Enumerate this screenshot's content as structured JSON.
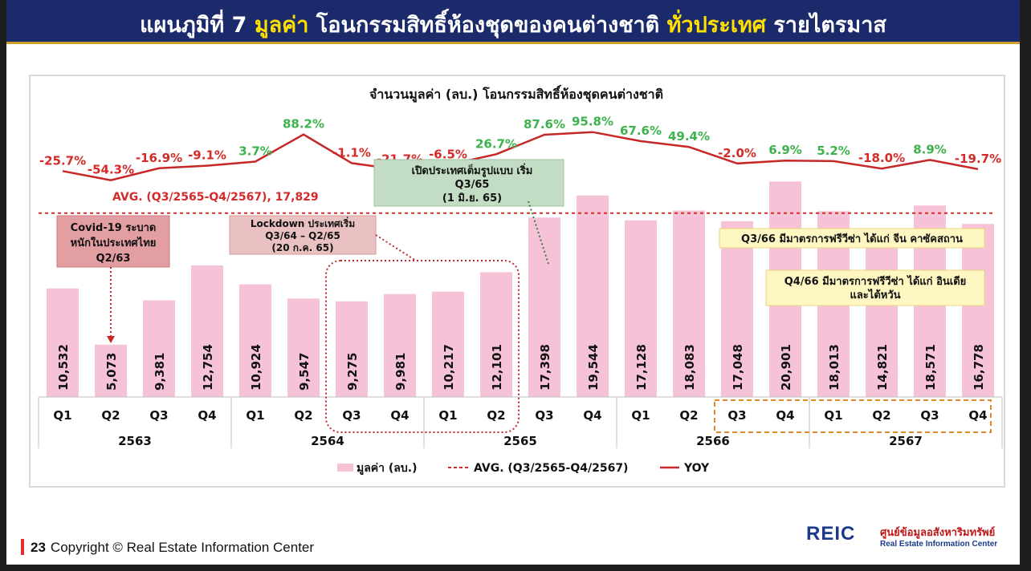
{
  "header": {
    "title_prefix": "แผนภูมิที่ 7 ",
    "title_highlight1": "มูลค่า",
    "title_middle": " โอนกรรมสิทธิ์ห้องชุดของคนต่างชาติ ",
    "title_highlight2": "ทั่วประเทศ",
    "title_suffix": " รายไตรมาส"
  },
  "chart_data": {
    "type": "bar",
    "title": "จำนวนมูลค่า (ลบ.) โอนกรรมสิทธิ์ห้องชุดคนต่างชาติ",
    "quarters": [
      "Q1",
      "Q2",
      "Q3",
      "Q4",
      "Q1",
      "Q2",
      "Q3",
      "Q4",
      "Q1",
      "Q2",
      "Q3",
      "Q4",
      "Q1",
      "Q2",
      "Q3",
      "Q4",
      "Q1",
      "Q2",
      "Q3",
      "Q4"
    ],
    "years": [
      {
        "label": "2563",
        "count": 4
      },
      {
        "label": "2564",
        "count": 4
      },
      {
        "label": "2565",
        "count": 4
      },
      {
        "label": "2566",
        "count": 4
      },
      {
        "label": "2567",
        "count": 4
      }
    ],
    "values": [
      10532,
      5073,
      9381,
      12754,
      10924,
      9547,
      9275,
      9981,
      10217,
      12101,
      17398,
      19544,
      17128,
      18083,
      17048,
      20901,
      18013,
      14821,
      18571,
      16778
    ],
    "value_labels": [
      "10,532",
      "5,073",
      "9,381",
      "12,754",
      "10,924",
      "9,547",
      "9,275",
      "9,981",
      "10,217",
      "12,101",
      "17,398",
      "19,544",
      "17,128",
      "18,083",
      "17,048",
      "20,901",
      "18,013",
      "14,821",
      "18,571",
      "16,778"
    ],
    "yoy": [
      -25.7,
      -54.3,
      -16.9,
      -9.1,
      3.7,
      88.2,
      -1.1,
      -21.7,
      -6.5,
      26.7,
      87.6,
      95.8,
      67.6,
      49.4,
      -2.0,
      6.9,
      5.2,
      -18.0,
      8.9,
      -19.7
    ],
    "yoy_labels": [
      "-25.7%",
      "-54.3%",
      "-16.9%",
      "-9.1%",
      "3.7%",
      "88.2%",
      "-1.1%",
      "-21.7%",
      "-6.5%",
      "26.7%",
      "87.6%",
      "95.8%",
      "67.6%",
      "49.4%",
      "-2.0%",
      "6.9%",
      "5.2%",
      "-18.0%",
      "8.9%",
      "-19.7%"
    ],
    "avg": 17829,
    "avg_label": "AVG. (Q3/2565-Q4/2567),  17,829",
    "ylim": [
      0,
      28000
    ],
    "legend": {
      "position": "bottom",
      "bar": "มูลค่า (ลบ.)",
      "avg": "AVG. (Q3/2565-Q4/2567)",
      "yoy": "YOY"
    },
    "annotations": {
      "covid": [
        "Covid-19 ระบาด",
        "หนักในประเทศไทย",
        "Q2/63"
      ],
      "lockdown": [
        "Lockdown ประเทศเริ่ม",
        "Q3/64 – Q2/65",
        "(20 ก.ค. 65)"
      ],
      "reopen": [
        "เปิดประเทศเต็มรูปแบบ เริ่ม",
        "Q3/65",
        "(1 มิ.ย. 65)"
      ],
      "visa1": "Q3/66 มีมาตรการฟรีวีซ่า ได้แก่ จีน คาซัคสถาน",
      "visa2": [
        "Q4/66 มีมาตรการฟรีวีซ่า ได้แก่ อินเดีย",
        "และไต้หวัน"
      ]
    },
    "colors": {
      "bar": "#f5c2d7",
      "avg": "#d42a2a",
      "yoy": "#c62828",
      "positive": "#3db24d",
      "negative": "#d42a2a"
    }
  },
  "footer": {
    "page": "23",
    "copyright": "Copyright © Real Estate Information Center"
  },
  "logo": {
    "mark": "REIC",
    "thai": "ศูนย์ข้อมูลอสังหาริมทรัพย์",
    "english": "Real Estate Information Center"
  }
}
